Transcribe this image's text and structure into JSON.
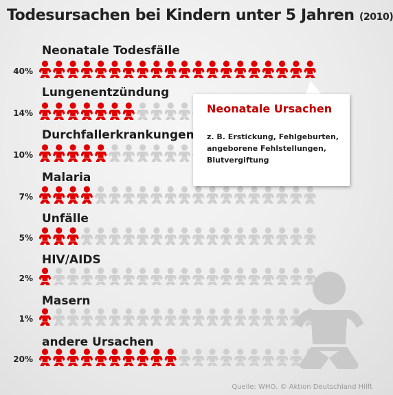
{
  "title": {
    "main": "Todesursachen bei Kindern unter 5 Jahren",
    "year": "(2010)"
  },
  "chart_data": {
    "type": "pictogram",
    "icons_per_row": 20,
    "categories": [
      "Neonatale Todesfälle",
      "Lungenentzündung",
      "Durchfallerkrankungen",
      "Malaria",
      "Unfälle",
      "HIV/AIDS",
      "Masern",
      "andere Ursachen"
    ],
    "values": [
      40,
      14,
      10,
      7,
      5,
      2,
      1,
      20
    ],
    "value_labels": [
      "40%",
      "14%",
      "10%",
      "7%",
      "5%",
      "2%",
      "1%",
      "20%"
    ],
    "icon_value": 2,
    "colors": {
      "filled": "#e00000",
      "empty": "#cfcfcf"
    }
  },
  "callout": {
    "title": "Neonatale Ursachen",
    "text": "z. B. Erstickung, Fehlgeburten, angeborene Fehlstellungen, Blutvergiftung"
  },
  "source": "Quelle: WHO, © Aktion Deutschland Hilft",
  "icon": "baby-icon"
}
